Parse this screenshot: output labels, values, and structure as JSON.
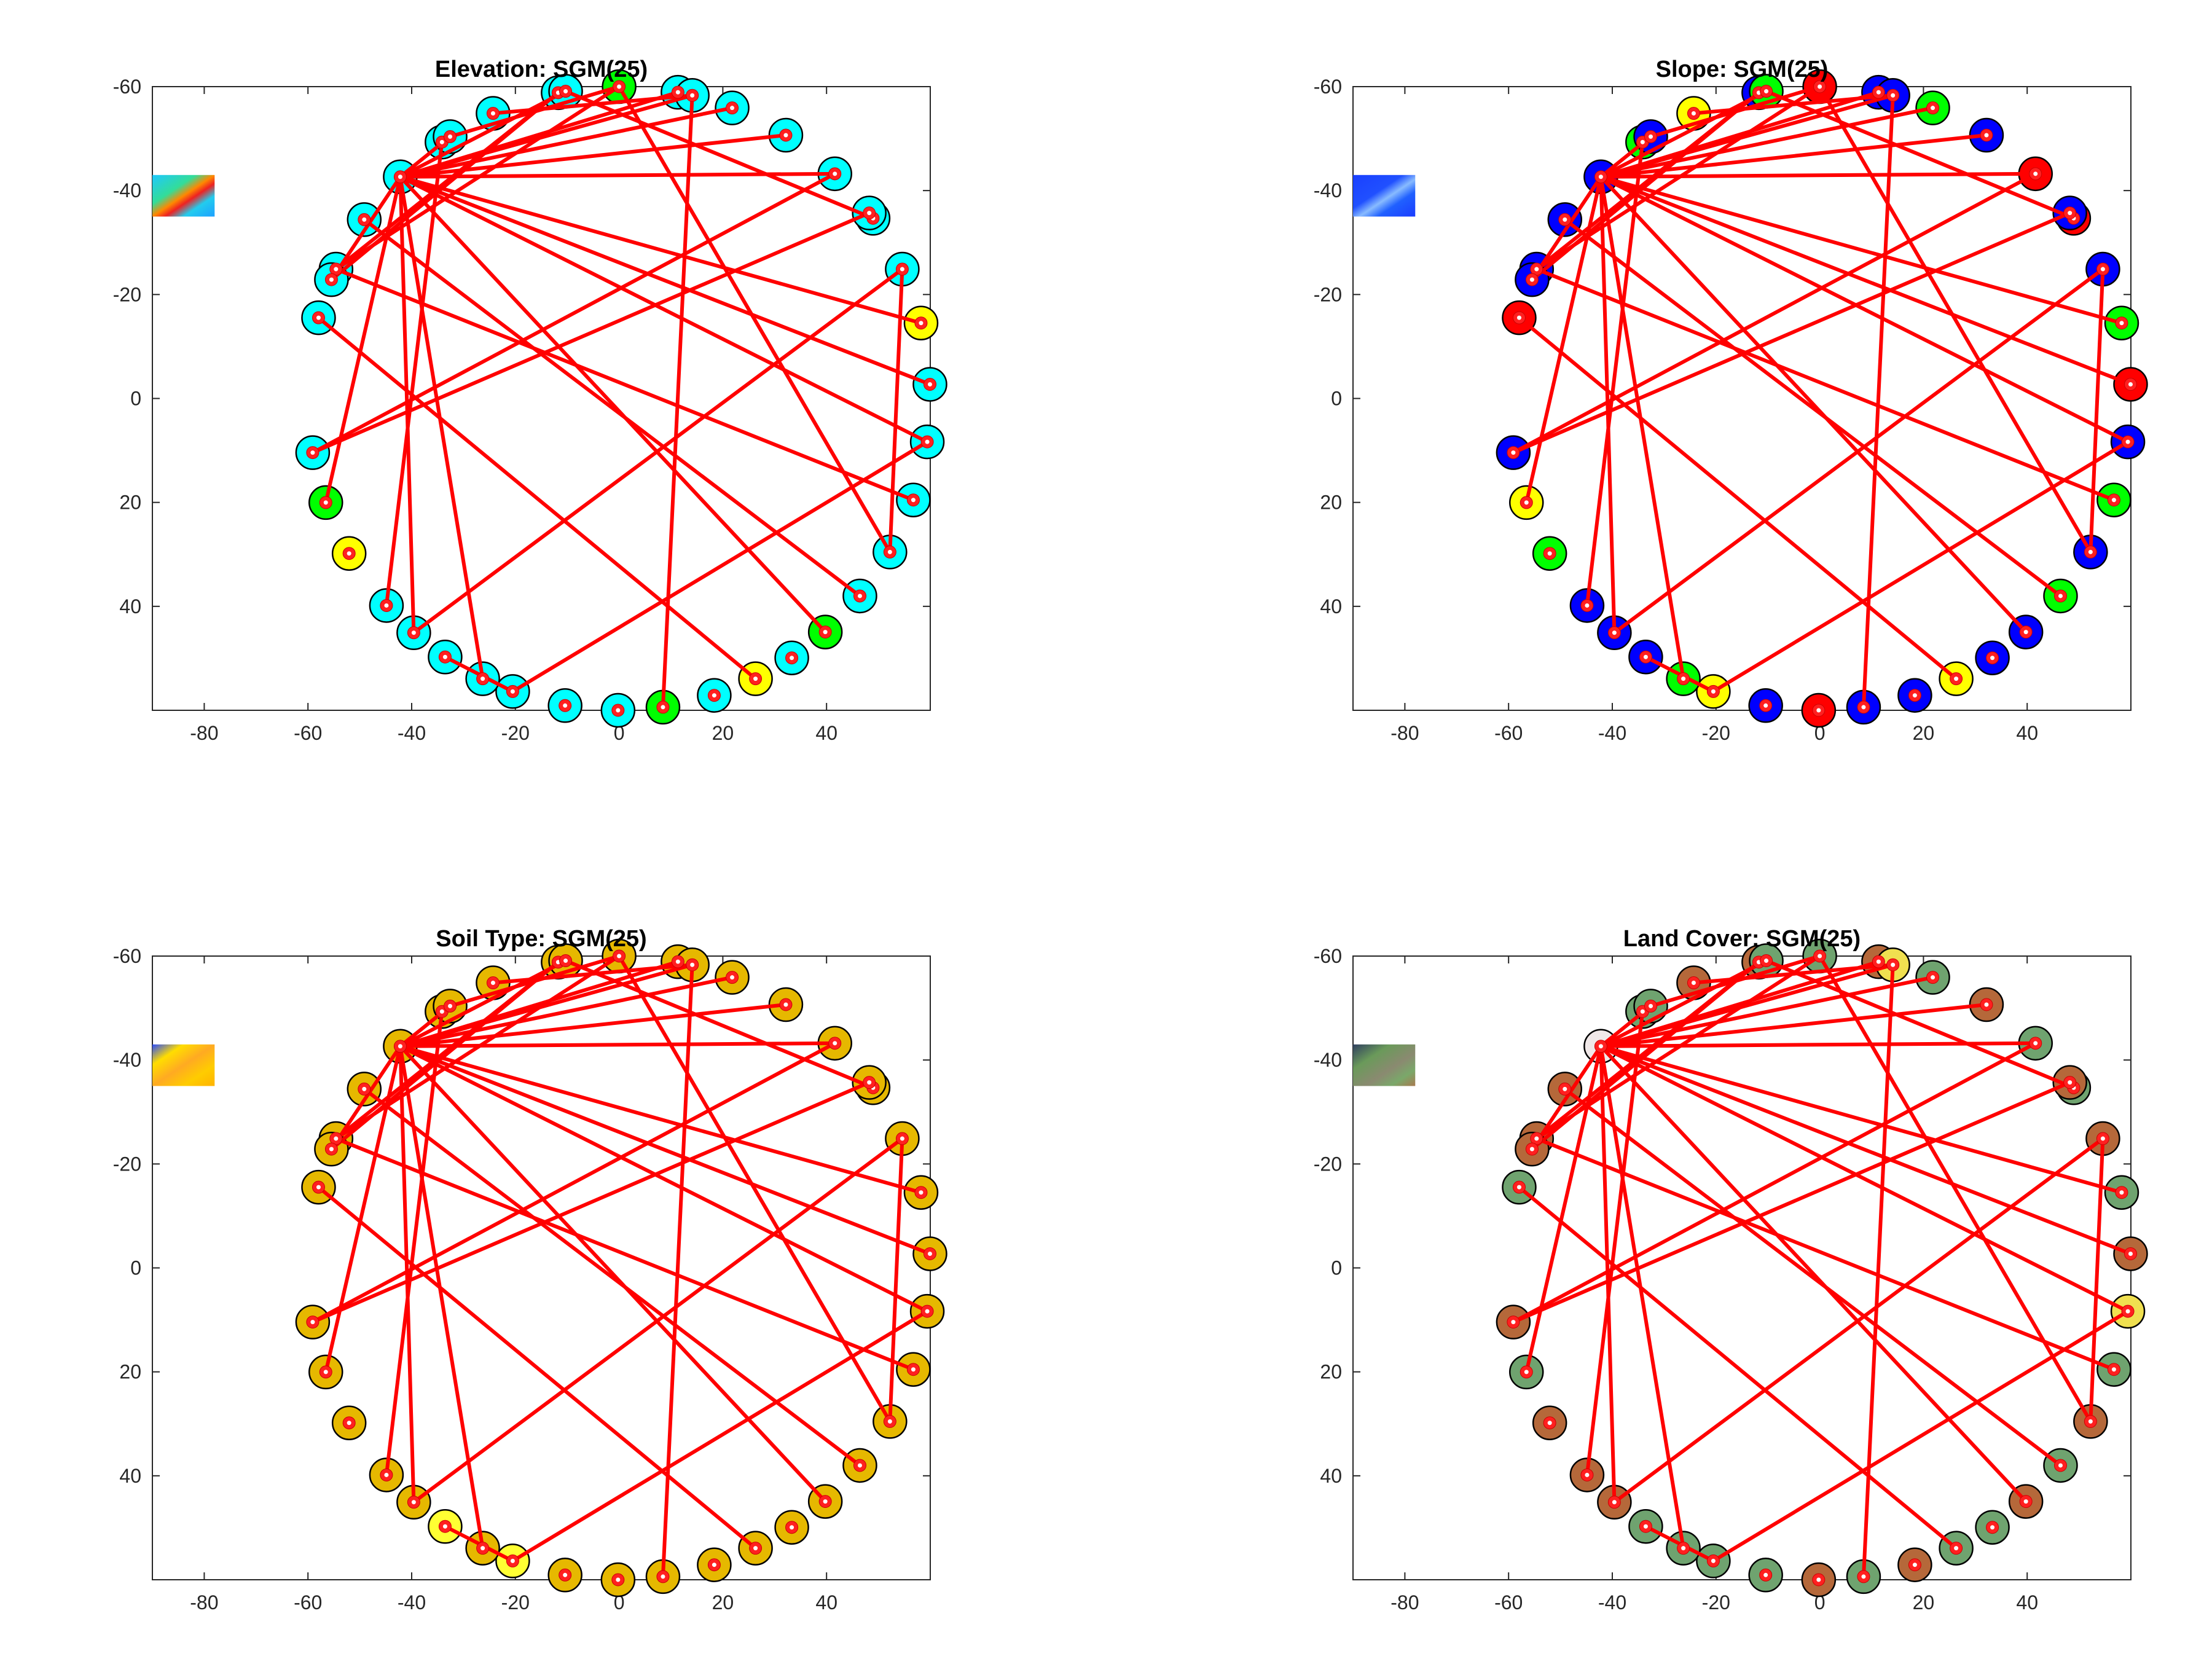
{
  "figure": {
    "node_count": 40,
    "circle_center": [
      0,
      0
    ],
    "circle_radius": 60
  },
  "chart_data": [
    {
      "type": "scatter",
      "title": "Elevation: SGM(25)",
      "xlim": [
        -90,
        60
      ],
      "ylim": [
        -60,
        60
      ],
      "y_reversed": true,
      "x_ticks": [
        -80,
        -60,
        -40,
        -20,
        0,
        20,
        40
      ],
      "y_ticks": [
        -60,
        -40,
        -20,
        0,
        20,
        40
      ],
      "grid": false,
      "inset_thumbnail": "elevation-map",
      "node_colors": [
        "#00ff00",
        "#00ffff",
        "#00ffff",
        "#00ffff",
        "#00ffff",
        "#00ffff",
        "#ffff00",
        "#00ffff",
        "#00ffff",
        "#00ffff",
        "#00ffff",
        "#00ffff",
        "#00ff00",
        "#00ffff",
        "#ffff00",
        "#00ffff",
        "#00ff00",
        "#00ffff",
        "#00ffff",
        "#00ffff",
        "#00ffff",
        "#00ffff",
        "#00ffff",
        "#00ffff",
        "#ffff00",
        "#00ff00",
        "#00ffff",
        "#00ffff",
        "#00ffff",
        "#00ffff",
        "#00ffff",
        "#00ffff",
        "#00ffff",
        "#00ffff",
        "#00ffff",
        "#00ffff",
        "#00ffff",
        "#00ffff",
        "#00ffff",
        "#00ffff"
      ]
    },
    {
      "type": "scatter",
      "title": "Slope: SGM(25)",
      "xlim": [
        -90,
        60
      ],
      "ylim": [
        -60,
        60
      ],
      "y_reversed": true,
      "x_ticks": [
        -80,
        -60,
        -40,
        -20,
        0,
        20,
        40
      ],
      "y_ticks": [
        -60,
        -40,
        -20,
        0,
        20,
        40
      ],
      "grid": false,
      "inset_thumbnail": "slope-map",
      "node_colors": [
        "#ff0000",
        "#0000ff",
        "#00ff00",
        "#0000ff",
        "#ff0000",
        "#ff0000",
        "#00ff00",
        "#ff0000",
        "#0000ff",
        "#00ff00",
        "#0000ff",
        "#00ff00",
        "#0000ff",
        "#0000ff",
        "#ffff00",
        "#0000ff",
        "#0000ff",
        "#ff0000",
        "#0000ff",
        "#ffff00",
        "#00ff00",
        "#0000ff",
        "#0000ff",
        "#0000ff",
        "#00ff00",
        "#ffff00",
        "#0000ff",
        "#ff0000",
        "#0000ff",
        "#0000ff",
        "#0000ff",
        "#00ff00",
        "#ffff00",
        "#0000ff",
        "#0000ff",
        "#0000ff",
        "#0000ff",
        "#0000ff",
        "#00ff00",
        "#0000ff"
      ]
    },
    {
      "type": "scatter",
      "title": "Soil Type: SGM(25)",
      "xlim": [
        -90,
        60
      ],
      "ylim": [
        -60,
        60
      ],
      "y_reversed": true,
      "x_ticks": [
        -80,
        -60,
        -40,
        -20,
        0,
        20,
        40
      ],
      "y_ticks": [
        -60,
        -40,
        -20,
        0,
        20,
        40
      ],
      "grid": false,
      "inset_thumbnail": "soil-map",
      "node_colors": [
        "#e6b800",
        "#e6b800",
        "#e6b800",
        "#e6b800",
        "#e6b800",
        "#e6b800",
        "#e6b800",
        "#e6b800",
        "#e6b800",
        "#e6b800",
        "#e6b800",
        "#e6b800",
        "#e6b800",
        "#e6b800",
        "#e6b800",
        "#e6b800",
        "#e6b800",
        "#e6b800",
        "#e6b800",
        "#ffff33",
        "#e6b800",
        "#ffff33",
        "#e6b800",
        "#e6b800",
        "#e6b800",
        "#e6b800",
        "#e6b800",
        "#e6b800",
        "#e6b800",
        "#e6b800",
        "#e6b800",
        "#e6b800",
        "#e6b800",
        "#e6b800",
        "#e6b800",
        "#e6b800",
        "#e6b800",
        "#e6b800",
        "#e6b800",
        "#e6b800"
      ]
    },
    {
      "type": "scatter",
      "title": "Land Cover: SGM(25)",
      "xlim": [
        -90,
        60
      ],
      "ylim": [
        -60,
        60
      ],
      "y_reversed": true,
      "x_ticks": [
        -80,
        -60,
        -40,
        -20,
        0,
        20,
        40
      ],
      "y_ticks": [
        -60,
        -40,
        -20,
        0,
        20,
        40
      ],
      "grid": false,
      "inset_thumbnail": "landcover-map",
      "node_colors": [
        "#6fa36f",
        "#b5683a",
        "#6fa36f",
        "#b5683a",
        "#6fa36f",
        "#6fa36f",
        "#6fa36f",
        "#b5683a",
        "#f0e050",
        "#6fa36f",
        "#b5683a",
        "#6fa36f",
        "#b5683a",
        "#6fa36f",
        "#6fa36f",
        "#b5683a",
        "#6fa36f",
        "#b5683a",
        "#6fa36f",
        "#6fa36f",
        "#6fa36f",
        "#6fa36f",
        "#b5683a",
        "#b5683a",
        "#b5683a",
        "#6fa36f",
        "#b5683a",
        "#6fa36f",
        "#b5683a",
        "#b5683a",
        "#f0e8e8",
        "#6fa36f",
        "#b5683a",
        "#b5683a",
        "#b5683a",
        "#b5683a",
        "#b5683a",
        "#f0e050",
        "#6fa36f",
        "#6fa36f"
      ]
    }
  ],
  "shared_edges": [
    [
      0,
      39
    ],
    [
      0,
      28
    ],
    [
      0,
      10
    ],
    [
      1,
      30
    ],
    [
      2,
      30
    ],
    [
      3,
      30
    ],
    [
      4,
      26
    ],
    [
      4,
      30
    ],
    [
      5,
      34
    ],
    [
      5,
      38
    ],
    [
      6,
      30
    ],
    [
      7,
      30
    ],
    [
      8,
      19
    ],
    [
      8,
      30
    ],
    [
      9,
      28
    ],
    [
      10,
      35
    ],
    [
      11,
      29
    ],
    [
      12,
      30
    ],
    [
      14,
      27
    ],
    [
      16,
      37
    ],
    [
      19,
      21
    ],
    [
      20,
      30
    ],
    [
      22,
      35
    ],
    [
      22,
      30
    ],
    [
      23,
      31
    ],
    [
      25,
      30
    ],
    [
      26,
      34
    ],
    [
      28,
      33
    ],
    [
      32,
      37
    ],
    [
      33,
      36
    ],
    [
      36,
      30
    ],
    [
      37,
      30
    ],
    [
      38,
      30
    ],
    [
      39,
      30
    ]
  ],
  "node_angles_deg": [
    -90,
    -79.1,
    -68.7,
    -57.6,
    -46.1,
    -35.3,
    -14.0,
    -2.6,
    8.0,
    19.0,
    29.5,
    39.3,
    48.5,
    56.3,
    64.0,
    72.2,
    81.9,
    90.2,
    100.0,
    110.0,
    116.0,
    124.0,
    131.3,
    138.4,
    150.2,
    160.5,
    170.0,
    -165.0,
    -155.5,
    -145.0,
    -134.7,
    -124.7,
    -113.9,
    -101.3,
    -36.5,
    -24.5,
    -157.6,
    -76.4,
    -99.9,
    -122.9
  ]
}
